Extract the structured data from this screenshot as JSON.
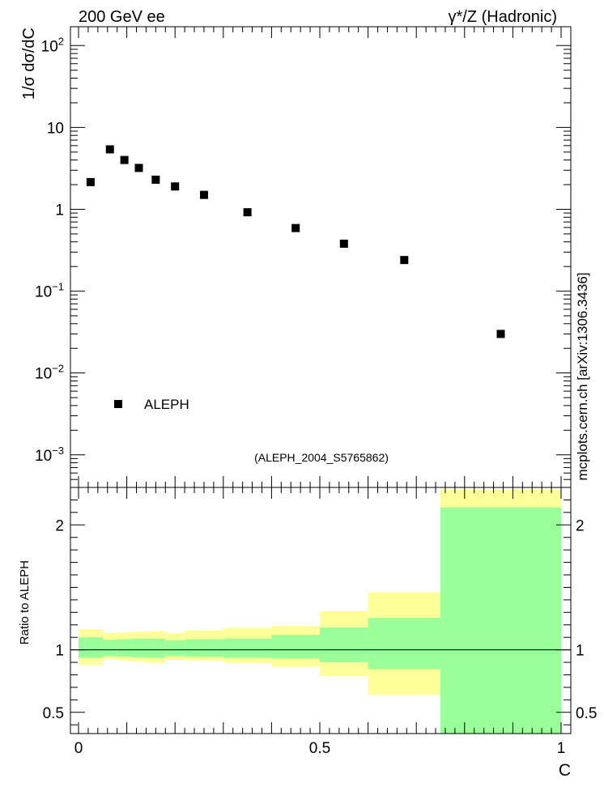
{
  "header": {
    "left": "200 GeV ee",
    "right": "γ*/Z (Hadronic)"
  },
  "side_label": "mcplots.cern.ch [arXiv:1306.3436]",
  "analysis_label": "(ALEPH_2004_S5765862)",
  "colors": {
    "marker": "#000000",
    "band_outer": "#ffff99",
    "band_inner": "#99ff99",
    "analysis_label": "#999999",
    "side_label": "#666666"
  },
  "chart_data": [
    {
      "type": "scatter",
      "ylabel": "1/σ  dσ/dC",
      "y_scale": "log",
      "xlim": [
        0,
        1
      ],
      "ylim": [
        0.0004,
        170
      ],
      "y_ticks": [
        {
          "v": 0.001,
          "base": "10",
          "exp": "−3"
        },
        {
          "v": 0.01,
          "base": "10",
          "exp": "−2"
        },
        {
          "v": 0.1,
          "base": "10",
          "exp": "−1"
        },
        {
          "v": 1,
          "base": "1",
          "exp": ""
        },
        {
          "v": 10,
          "base": "10",
          "exp": ""
        },
        {
          "v": 100,
          "base": "10",
          "exp": "2"
        }
      ],
      "legend": {
        "entries": [
          "ALEPH"
        ],
        "placement": "bottom-left"
      },
      "series": [
        {
          "name": "ALEPH",
          "x": [
            0.025,
            0.065,
            0.095,
            0.125,
            0.16,
            0.2,
            0.26,
            0.35,
            0.45,
            0.55,
            0.675,
            0.875
          ],
          "y": [
            2.15,
            5.4,
            4.0,
            3.2,
            2.3,
            1.9,
            1.5,
            0.92,
            0.59,
            0.38,
            0.24,
            0.03
          ]
        }
      ]
    },
    {
      "type": "area",
      "ylabel": "Ratio to ALEPH",
      "xlabel": "C",
      "xlim": [
        0,
        1
      ],
      "ylim": [
        0.33,
        2.3
      ],
      "reference_line": 1,
      "y_ticks": [
        "0.5",
        "1",
        "2"
      ],
      "x_ticks": [
        "0",
        "0.5",
        "1"
      ],
      "bins": [
        0,
        0.05,
        0.08,
        0.11,
        0.14,
        0.18,
        0.22,
        0.3,
        0.4,
        0.5,
        0.6,
        0.75,
        1.0
      ],
      "bands": [
        {
          "name": "outer",
          "low": [
            0.88,
            0.925,
            0.915,
            0.905,
            0.895,
            0.92,
            0.915,
            0.895,
            0.865,
            0.79,
            0.64,
            0.33
          ],
          "high": [
            1.165,
            1.135,
            1.14,
            1.145,
            1.15,
            1.135,
            1.155,
            1.175,
            1.19,
            1.31,
            1.46,
            2.28
          ]
        },
        {
          "name": "inner",
          "low": [
            0.935,
            0.95,
            0.945,
            0.94,
            0.935,
            0.95,
            0.945,
            0.935,
            0.93,
            0.9,
            0.845,
            0.33
          ],
          "high": [
            1.1,
            1.08,
            1.085,
            1.09,
            1.09,
            1.075,
            1.085,
            1.09,
            1.12,
            1.18,
            1.255,
            2.14
          ]
        }
      ]
    }
  ]
}
